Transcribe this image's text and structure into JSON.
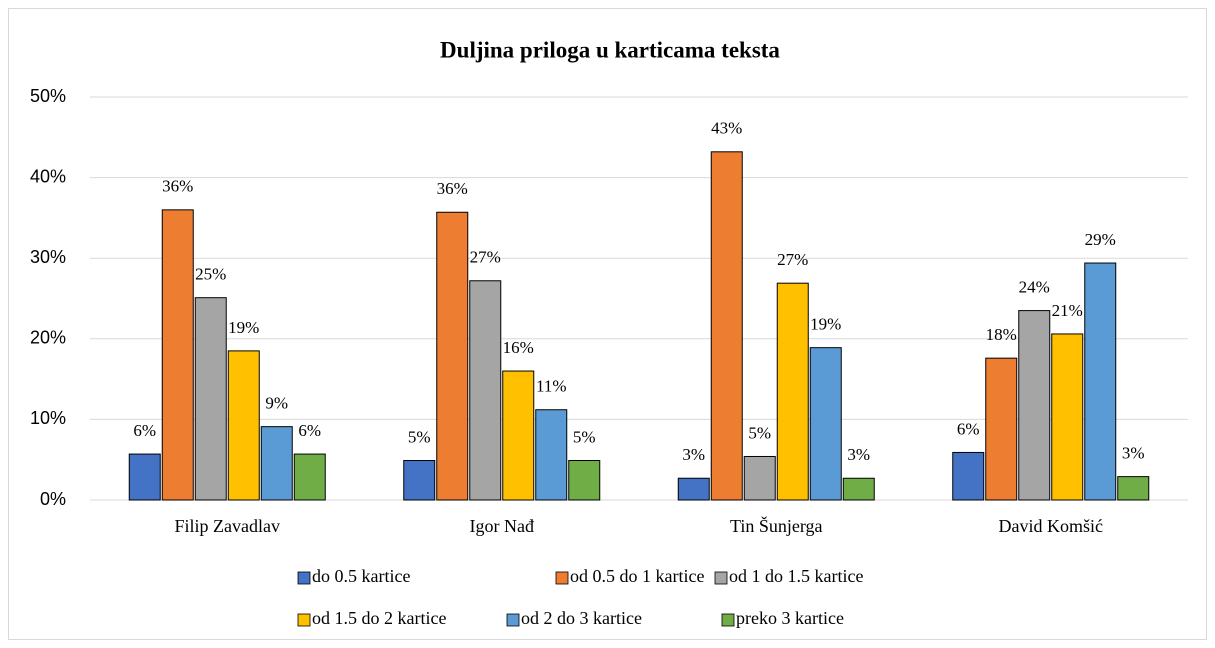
{
  "chart_data": {
    "type": "bar",
    "title": "Duljina priloga u karticama teksta",
    "categories": [
      "Filip Zavadlav",
      "Igor Nađ",
      "Tin Šunjerga",
      "David Komšić"
    ],
    "series": [
      {
        "name": "do 0.5 kartice",
        "color": "#4472c4",
        "values": [
          5.7,
          4.9,
          2.7,
          5.9
        ],
        "value_labels": [
          "6%",
          "5%",
          "3%",
          "6%"
        ]
      },
      {
        "name": "od 0.5 do 1 kartice",
        "color": "#ed7d31",
        "values": [
          36.0,
          35.7,
          43.2,
          17.6
        ],
        "value_labels": [
          "36%",
          "36%",
          "43%",
          "18%"
        ]
      },
      {
        "name": "od 1 do 1.5 kartice",
        "color": "#a5a5a5",
        "values": [
          25.1,
          27.2,
          5.4,
          23.5
        ],
        "value_labels": [
          "25%",
          "27%",
          "5%",
          "24%"
        ]
      },
      {
        "name": "od 1.5 do 2 kartice",
        "color": "#ffc000",
        "values": [
          18.5,
          16.0,
          26.9,
          20.6
        ],
        "value_labels": [
          "19%",
          "16%",
          "27%",
          "21%"
        ]
      },
      {
        "name": "od 2 do 3 kartice",
        "color": "#5b9bd5",
        "values": [
          9.1,
          11.2,
          18.9,
          29.4
        ],
        "value_labels": [
          "9%",
          "11%",
          "19%",
          "29%"
        ]
      },
      {
        "name": "preko 3 kartice",
        "color": "#70ad47",
        "values": [
          5.7,
          4.9,
          2.7,
          2.9
        ],
        "value_labels": [
          "6%",
          "5%",
          "3%",
          "3%"
        ]
      }
    ],
    "ylim": [
      0,
      50
    ],
    "yticks": [
      {
        "value": 0,
        "label": "0%"
      },
      {
        "value": 10,
        "label": "10%"
      },
      {
        "value": 20,
        "label": "20%"
      },
      {
        "value": 30,
        "label": "30%"
      },
      {
        "value": 40,
        "label": "40%"
      },
      {
        "value": 50,
        "label": "50%"
      }
    ],
    "grid": true,
    "legend": "bottom"
  }
}
